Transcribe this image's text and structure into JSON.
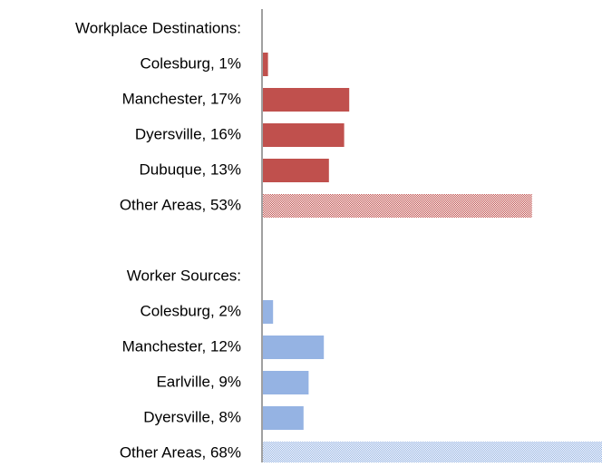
{
  "chart_data": {
    "type": "bar",
    "orientation": "horizontal",
    "series": [
      {
        "name": "Workplace Destinations:",
        "color": "#c0504d",
        "categories": [
          "Colesburg, 1%",
          "Manchester, 17%",
          "Dyersville, 16%",
          "Dubuque, 13%",
          "Other Areas, 53%"
        ],
        "values": [
          1,
          17,
          16,
          13,
          53
        ],
        "patterns": [
          "solid",
          "solid",
          "solid",
          "solid",
          "checkered"
        ]
      },
      {
        "name": "Worker Sources:",
        "color": "#95b3e3",
        "categories": [
          "Colesburg, 2%",
          "Manchester, 12%",
          "Earlville, 9%",
          "Dyersville, 8%",
          "Other Areas, 68%"
        ],
        "values": [
          2,
          12,
          9,
          8,
          68
        ],
        "patterns": [
          "solid",
          "solid",
          "solid",
          "solid",
          "checkered"
        ]
      }
    ]
  }
}
